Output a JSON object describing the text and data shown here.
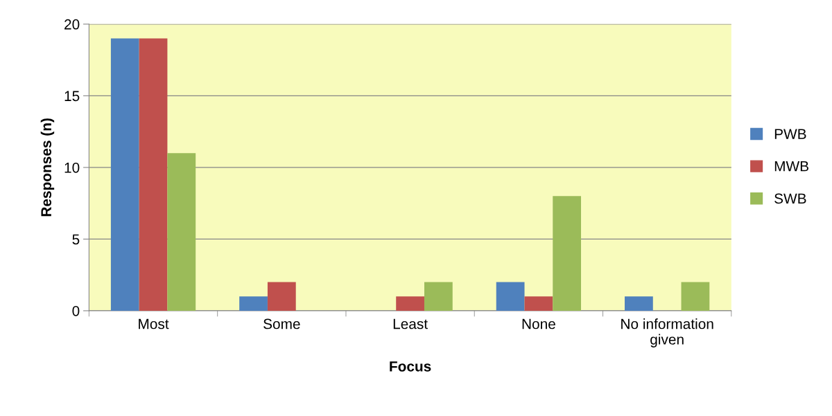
{
  "chart_data": {
    "type": "bar",
    "xlabel": "Focus",
    "ylabel": "Responses (n)",
    "categories": [
      "Most",
      "Some",
      "Least",
      "None",
      "No information\ngiven"
    ],
    "series": [
      {
        "name": "PWB",
        "color": "#4f81bd",
        "values": [
          19,
          1,
          0,
          2,
          1
        ]
      },
      {
        "name": "MWB",
        "color": "#c0504d",
        "values": [
          19,
          2,
          1,
          1,
          0
        ]
      },
      {
        "name": "SWB",
        "color": "#9bbb59",
        "values": [
          11,
          0,
          2,
          8,
          2
        ]
      }
    ],
    "ylim": [
      0,
      20
    ],
    "yticks": [
      0,
      5,
      10,
      15,
      20
    ],
    "grid": "y",
    "legend": "right"
  }
}
